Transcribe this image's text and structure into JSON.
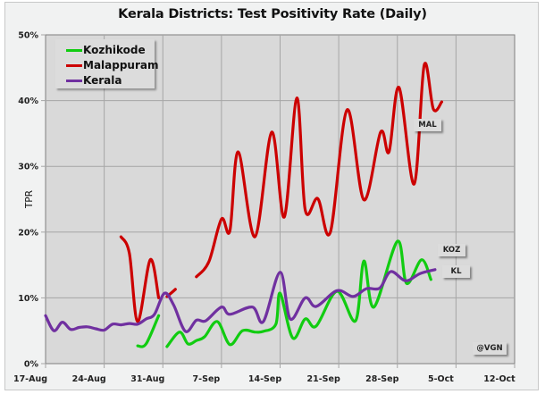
{
  "chart_data": {
    "type": "line",
    "title": "Kerala Districts: Test Positivity Rate (Daily)",
    "xlabel": "",
    "ylabel": "TPR",
    "x_start_date": "17-Aug",
    "x_unit": "days since 17-Aug",
    "xlim": [
      0,
      56
    ],
    "ylim": [
      0,
      50
    ],
    "y_tick_values": [
      0,
      10,
      20,
      30,
      40,
      50
    ],
    "y_tick_labels": [
      "0%",
      "10%",
      "20%",
      "30%",
      "40%",
      "50%"
    ],
    "x_tick_values": [
      0,
      7,
      14,
      21,
      28,
      35,
      42,
      49,
      56
    ],
    "x_tick_labels": [
      "17-Aug",
      "24-Aug",
      "31-Aug",
      "7-Sep",
      "14-Sep",
      "21-Sep",
      "28-Sep",
      "5-Oct",
      "12-Oct"
    ],
    "grid": true,
    "legend_position": "top-left",
    "series": [
      {
        "name": "Kozhikode",
        "short": "KOZ",
        "color": "#11cc11",
        "segments": [
          [
            [
              11,
              2.7
            ],
            [
              12,
              3.0
            ],
            [
              13.5,
              7.3
            ]
          ],
          [
            [
              14.5,
              2.6
            ],
            [
              16,
              4.8
            ],
            [
              17,
              3.0
            ],
            [
              18,
              3.5
            ],
            [
              19,
              4.1
            ],
            [
              20.5,
              6.4
            ],
            [
              22,
              2.9
            ],
            [
              23.5,
              5.0
            ],
            [
              25,
              4.8
            ],
            [
              26,
              4.9
            ],
            [
              27.5,
              6.0
            ],
            [
              28,
              10.7
            ],
            [
              29.5,
              3.9
            ],
            [
              31,
              6.8
            ],
            [
              32.3,
              5.7
            ],
            [
              34.8,
              11.0
            ],
            [
              37,
              6.5
            ],
            [
              38,
              15.6
            ],
            [
              39.2,
              8.6
            ],
            [
              42,
              18.6
            ],
            [
              43.1,
              12.2
            ],
            [
              44.9,
              15.8
            ],
            [
              46,
              12.8
            ]
          ]
        ]
      },
      {
        "name": "Malappuram",
        "short": "MAL",
        "color": "#cc0000",
        "segments": [
          [
            [
              9,
              19.3
            ],
            [
              10,
              16.8
            ],
            [
              11,
              6.4
            ],
            [
              12.5,
              15.8
            ],
            [
              13.5,
              10.0
            ]
          ],
          [
            [
              14.5,
              10.2
            ],
            [
              15.5,
              11.3
            ]
          ],
          [
            [
              18,
              13.2
            ],
            [
              19.5,
              15.5
            ],
            [
              21,
              22.0
            ],
            [
              22,
              20.2
            ],
            [
              23,
              32.2
            ],
            [
              25,
              19.3
            ],
            [
              27,
              35.2
            ],
            [
              28.5,
              22.3
            ],
            [
              30,
              40.4
            ],
            [
              31,
              23.4
            ],
            [
              32.5,
              25.1
            ],
            [
              34,
              20.0
            ],
            [
              36,
              38.6
            ],
            [
              38,
              24.9
            ],
            [
              40,
              35.2
            ],
            [
              41,
              32.2
            ],
            [
              42.2,
              42.0
            ],
            [
              44,
              27.3
            ],
            [
              45.2,
              45.4
            ],
            [
              46.3,
              38.7
            ],
            [
              47.3,
              39.8
            ]
          ]
        ]
      },
      {
        "name": "Kerala",
        "short": "KL",
        "color": "#7030a0",
        "segments": [
          [
            [
              0,
              7.3
            ],
            [
              1,
              5.0
            ],
            [
              2,
              6.3
            ],
            [
              3,
              5.2
            ],
            [
              4,
              5.5
            ],
            [
              5,
              5.6
            ],
            [
              6,
              5.3
            ],
            [
              7,
              5.1
            ],
            [
              8,
              6.0
            ],
            [
              9,
              5.9
            ],
            [
              10,
              6.1
            ],
            [
              11,
              6.0
            ],
            [
              12,
              6.8
            ],
            [
              13,
              7.5
            ],
            [
              14.2,
              10.7
            ],
            [
              15.3,
              8.9
            ],
            [
              16.7,
              4.9
            ],
            [
              18,
              6.6
            ],
            [
              19.1,
              6.5
            ],
            [
              21,
              8.6
            ],
            [
              22,
              7.5
            ],
            [
              24.7,
              8.6
            ],
            [
              26,
              6.4
            ],
            [
              28,
              13.9
            ],
            [
              29.2,
              6.8
            ],
            [
              31,
              10.0
            ],
            [
              32.3,
              8.7
            ],
            [
              34.8,
              11.1
            ],
            [
              36.7,
              10.2
            ],
            [
              38.3,
              11.4
            ],
            [
              39.9,
              11.5
            ],
            [
              41.2,
              14.0
            ],
            [
              43,
              12.6
            ],
            [
              44.7,
              13.7
            ],
            [
              46.5,
              14.3
            ]
          ]
        ]
      }
    ],
    "annotations": [
      {
        "text": "MAL",
        "series": "Malappuram"
      },
      {
        "text": "KOZ",
        "series": "Kozhikode"
      },
      {
        "text": "KL",
        "series": "Kerala"
      },
      {
        "text": "@VGN",
        "series": null
      }
    ]
  }
}
